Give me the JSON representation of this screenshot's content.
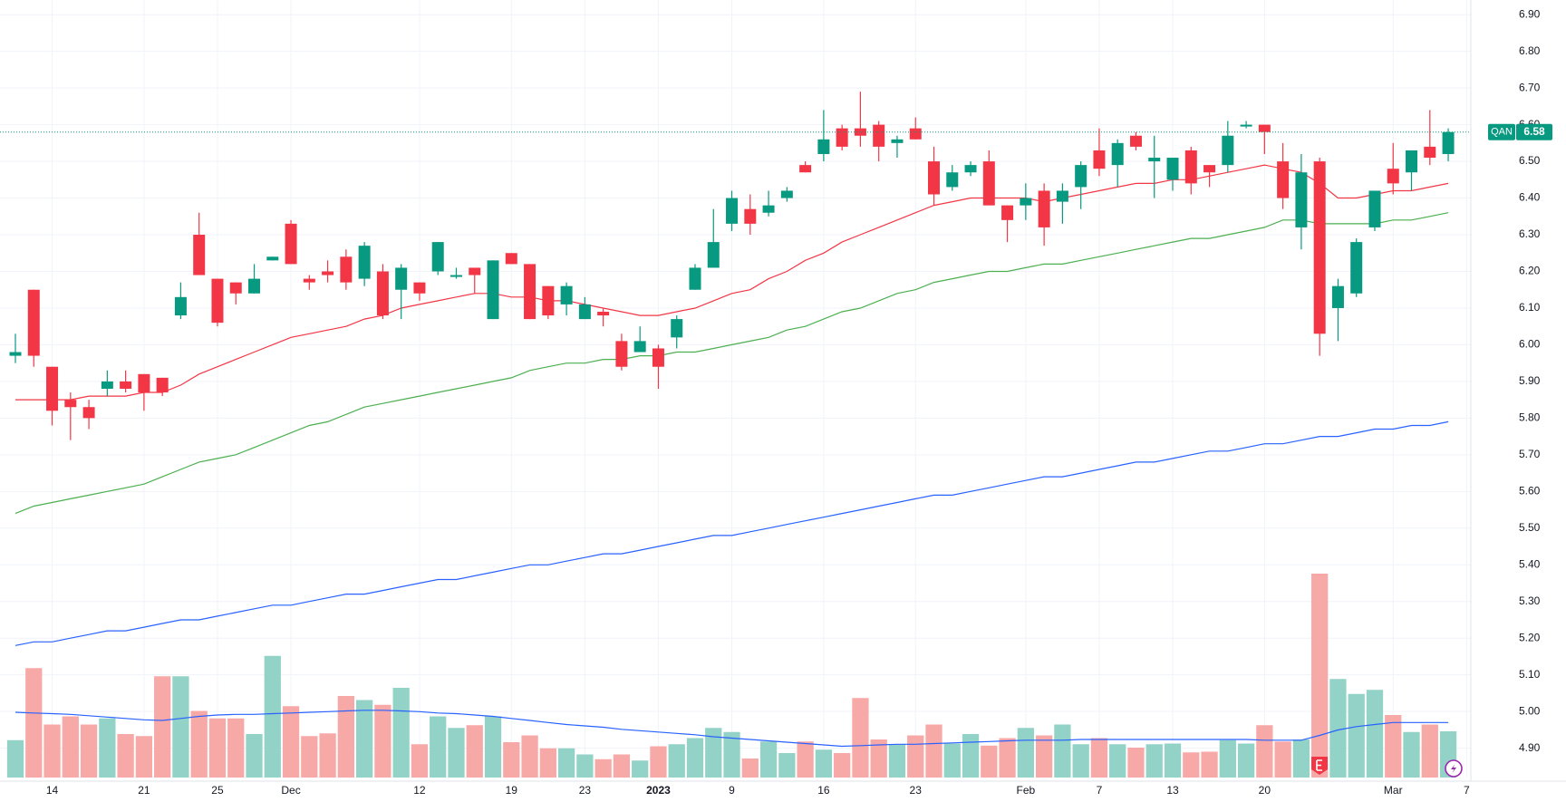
{
  "chart_data": {
    "type": "candlestick",
    "symbol": "QAN",
    "last_price": 6.58,
    "categories": [
      null,
      null,
      "14",
      null,
      null,
      null,
      null,
      "21",
      null,
      null,
      null,
      "25",
      null,
      null,
      null,
      "Dec",
      null,
      null,
      null,
      null,
      null,
      null,
      "12",
      null,
      null,
      null,
      null,
      "19",
      null,
      null,
      null,
      "23",
      null,
      null,
      null,
      "2023",
      null,
      null,
      null,
      "9",
      null,
      null,
      null,
      null,
      "16",
      null,
      null,
      null,
      null,
      "23",
      null,
      null,
      null,
      null,
      null,
      "Feb",
      null,
      null,
      null,
      "7",
      null,
      null,
      null,
      "13",
      null,
      null,
      null,
      null,
      "20",
      null,
      null,
      null,
      null,
      null,
      null,
      "Mar",
      null,
      null,
      null,
      "7"
    ],
    "open": [
      5.97,
      6.15,
      5.94,
      5.85,
      5.83,
      5.88,
      5.9,
      5.92,
      5.91,
      6.08,
      6.3,
      6.18,
      6.17,
      6.14,
      6.23,
      6.33,
      6.18,
      6.2,
      6.24,
      6.18,
      6.2,
      6.15,
      6.17,
      6.2,
      6.185,
      6.21,
      6.07,
      6.25,
      6.22,
      6.16,
      6.11,
      6.07,
      6.09,
      6.01,
      5.98,
      5.99,
      6.02,
      6.15,
      6.21,
      6.33,
      6.37,
      6.36,
      6.4,
      6.49,
      6.52,
      6.59,
      6.59,
      6.6,
      6.55,
      6.59,
      6.5,
      6.43,
      6.47,
      6.5,
      6.38,
      6.38,
      6.42,
      6.39,
      6.43,
      6.53,
      6.49,
      6.57,
      6.5,
      6.45,
      6.53,
      6.49,
      6.49,
      6.595,
      6.6,
      6.5,
      6.32,
      6.5,
      6.1,
      6.14,
      6.32,
      6.48,
      6.47,
      6.54,
      6.52,
      null
    ],
    "high": [
      6.03,
      6.15,
      5.94,
      5.87,
      5.85,
      5.93,
      5.93,
      5.92,
      5.91,
      6.17,
      6.36,
      6.18,
      6.17,
      6.22,
      6.24,
      6.34,
      6.19,
      6.23,
      6.26,
      6.28,
      6.22,
      6.22,
      6.17,
      6.28,
      6.21,
      6.21,
      6.23,
      6.25,
      6.22,
      6.16,
      6.17,
      6.13,
      6.1,
      6.03,
      6.05,
      6.0,
      6.08,
      6.22,
      6.37,
      6.42,
      6.41,
      6.42,
      6.43,
      6.5,
      6.64,
      6.6,
      6.69,
      6.61,
      6.57,
      6.62,
      6.54,
      6.49,
      6.5,
      6.53,
      6.38,
      6.44,
      6.44,
      6.44,
      6.5,
      6.59,
      6.56,
      6.58,
      6.57,
      6.51,
      6.54,
      6.49,
      6.61,
      6.61,
      6.6,
      6.55,
      6.52,
      6.51,
      6.18,
      6.29,
      6.42,
      6.55,
      6.53,
      6.64,
      6.59,
      null
    ],
    "low": [
      5.95,
      5.94,
      5.78,
      5.74,
      5.77,
      5.86,
      5.87,
      5.82,
      5.86,
      6.07,
      6.19,
      6.05,
      6.11,
      6.14,
      6.23,
      6.22,
      6.15,
      6.17,
      6.15,
      6.16,
      6.07,
      6.07,
      6.12,
      6.19,
      6.18,
      6.14,
      6.07,
      6.22,
      6.07,
      6.07,
      6.08,
      6.07,
      6.05,
      5.93,
      5.98,
      5.88,
      5.99,
      6.15,
      6.21,
      6.31,
      6.3,
      6.35,
      6.39,
      6.47,
      6.5,
      6.53,
      6.54,
      6.5,
      6.51,
      6.56,
      6.38,
      6.42,
      6.46,
      6.38,
      6.28,
      6.34,
      6.27,
      6.33,
      6.37,
      6.46,
      6.43,
      6.53,
      6.4,
      6.42,
      6.41,
      6.43,
      6.47,
      6.59,
      6.52,
      6.37,
      6.26,
      5.97,
      6.01,
      6.13,
      6.31,
      6.41,
      6.42,
      6.49,
      6.5,
      null
    ],
    "close": [
      5.98,
      5.97,
      5.82,
      5.83,
      5.8,
      5.9,
      5.88,
      5.87,
      5.87,
      6.13,
      6.19,
      6.06,
      6.14,
      6.18,
      6.24,
      6.22,
      6.17,
      6.19,
      6.17,
      6.27,
      6.08,
      6.21,
      6.14,
      6.28,
      6.19,
      6.19,
      6.23,
      6.22,
      6.07,
      6.08,
      6.16,
      6.11,
      6.08,
      5.94,
      6.01,
      5.94,
      6.07,
      6.21,
      6.28,
      6.4,
      6.33,
      6.38,
      6.42,
      6.47,
      6.56,
      6.54,
      6.57,
      6.54,
      6.56,
      6.56,
      6.41,
      6.47,
      6.49,
      6.38,
      6.34,
      6.4,
      6.32,
      6.42,
      6.49,
      6.48,
      6.55,
      6.54,
      6.51,
      6.51,
      6.44,
      6.47,
      6.57,
      6.6,
      6.58,
      6.4,
      6.47,
      6.03,
      6.16,
      6.28,
      6.42,
      6.44,
      6.53,
      6.51,
      6.58,
      null
    ],
    "volume": [
      5.5,
      16.1,
      7.8,
      9.0,
      7.8,
      8.7,
      6.4,
      6.1,
      14.9,
      14.9,
      9.8,
      8.7,
      8.7,
      6.4,
      17.9,
      10.5,
      6.1,
      6.5,
      12.0,
      11.4,
      10.7,
      13.2,
      4.9,
      9.0,
      7.3,
      7.7,
      9.0,
      5.2,
      6.2,
      4.3,
      4.3,
      3.4,
      2.7,
      3.4,
      2.5,
      4.6,
      4.9,
      5.8,
      7.3,
      6.7,
      2.8,
      5.3,
      3.6,
      5.3,
      4.1,
      3.6,
      11.7,
      5.6,
      4.9,
      6.2,
      7.8,
      5.0,
      6.4,
      4.7,
      5.8,
      7.3,
      6.2,
      7.8,
      4.9,
      5.8,
      4.9,
      4.4,
      4.9,
      5.0,
      3.7,
      3.8,
      5.5,
      5.0,
      7.7,
      5.3,
      5.6,
      30.0,
      14.5,
      12.3,
      12.9,
      9.2,
      6.7,
      7.8,
      6.8,
      null
    ],
    "up_color": "#089981",
    "down_color": "#f23645",
    "up_volume_color": "#92d2c7",
    "down_volume_color": "#f7a9a7",
    "volume_lim": [
      0,
      60
    ],
    "ylim": [
      4.82,
      6.94
    ],
    "yticks": [
      {
        "value": 4.9,
        "label": "4.90"
      },
      {
        "value": 5.0,
        "label": "5.00"
      },
      {
        "value": 5.1,
        "label": "5.10"
      },
      {
        "value": 5.2,
        "label": "5.20"
      },
      {
        "value": 5.3,
        "label": "5.30"
      },
      {
        "value": 5.4,
        "label": "5.40"
      },
      {
        "value": 5.5,
        "label": "5.50"
      },
      {
        "value": 5.6,
        "label": "5.60"
      },
      {
        "value": 5.7,
        "label": "5.70"
      },
      {
        "value": 5.8,
        "label": "5.80"
      },
      {
        "value": 5.9,
        "label": "5.90"
      },
      {
        "value": 6.0,
        "label": "6.00"
      },
      {
        "value": 6.1,
        "label": "6.10"
      },
      {
        "value": 6.2,
        "label": "6.20"
      },
      {
        "value": 6.3,
        "label": "6.30"
      },
      {
        "value": 6.4,
        "label": "6.40"
      },
      {
        "value": 6.5,
        "label": "6.50"
      },
      {
        "value": 6.6,
        "label": "6.60"
      },
      {
        "value": 6.7,
        "label": "6.70"
      },
      {
        "value": 6.8,
        "label": "6.80"
      },
      {
        "value": 6.9,
        "label": "6.90"
      }
    ],
    "grid": true,
    "overlays": [
      {
        "color": "#f23645",
        "values": [
          5.85,
          5.85,
          5.85,
          5.85,
          5.86,
          5.86,
          5.86,
          5.87,
          5.87,
          5.89,
          5.92,
          5.94,
          5.96,
          5.98,
          6.0,
          6.02,
          6.03,
          6.04,
          6.05,
          6.07,
          6.08,
          6.1,
          6.11,
          6.12,
          6.13,
          6.14,
          6.14,
          6.13,
          6.13,
          6.12,
          6.12,
          6.11,
          6.1,
          6.09,
          6.08,
          6.08,
          6.09,
          6.1,
          6.12,
          6.14,
          6.15,
          6.18,
          6.2,
          6.23,
          6.25,
          6.28,
          6.3,
          6.32,
          6.34,
          6.36,
          6.38,
          6.39,
          6.4,
          6.4,
          6.4,
          6.4,
          6.39,
          6.4,
          6.41,
          6.42,
          6.43,
          6.44,
          6.44,
          6.45,
          6.45,
          6.46,
          6.47,
          6.48,
          6.49,
          6.48,
          6.47,
          6.44,
          6.4,
          6.4,
          6.41,
          6.42,
          6.42,
          6.43,
          6.44,
          null
        ]
      },
      {
        "color": "#4caf50",
        "values": [
          5.54,
          5.56,
          5.57,
          5.58,
          5.59,
          5.6,
          5.61,
          5.62,
          5.64,
          5.66,
          5.68,
          5.69,
          5.7,
          5.72,
          5.74,
          5.76,
          5.78,
          5.79,
          5.81,
          5.83,
          5.84,
          5.85,
          5.86,
          5.87,
          5.88,
          5.89,
          5.9,
          5.91,
          5.93,
          5.94,
          5.95,
          5.95,
          5.96,
          5.96,
          5.97,
          5.97,
          5.98,
          5.98,
          5.99,
          6.0,
          6.01,
          6.02,
          6.04,
          6.05,
          6.07,
          6.09,
          6.1,
          6.12,
          6.14,
          6.15,
          6.17,
          6.18,
          6.19,
          6.2,
          6.2,
          6.21,
          6.22,
          6.22,
          6.23,
          6.24,
          6.25,
          6.26,
          6.27,
          6.28,
          6.29,
          6.29,
          6.3,
          6.31,
          6.32,
          6.34,
          6.34,
          6.33,
          6.33,
          6.33,
          6.33,
          6.34,
          6.34,
          6.35,
          6.36,
          null
        ]
      },
      {
        "color": "#2962ff",
        "values": [
          5.18,
          5.19,
          5.19,
          5.2,
          5.21,
          5.22,
          5.22,
          5.23,
          5.24,
          5.25,
          5.25,
          5.26,
          5.27,
          5.28,
          5.29,
          5.29,
          5.3,
          5.31,
          5.32,
          5.32,
          5.33,
          5.34,
          5.35,
          5.36,
          5.36,
          5.37,
          5.38,
          5.39,
          5.4,
          5.4,
          5.41,
          5.42,
          5.43,
          5.43,
          5.44,
          5.45,
          5.46,
          5.47,
          5.48,
          5.48,
          5.49,
          5.5,
          5.51,
          5.52,
          5.53,
          5.54,
          5.55,
          5.56,
          5.57,
          5.58,
          5.59,
          5.59,
          5.6,
          5.61,
          5.62,
          5.63,
          5.64,
          5.64,
          5.65,
          5.66,
          5.67,
          5.68,
          5.68,
          5.69,
          5.7,
          5.71,
          5.71,
          5.72,
          5.73,
          5.73,
          5.74,
          5.75,
          5.75,
          5.76,
          5.77,
          5.77,
          5.78,
          5.78,
          5.79,
          null
        ]
      }
    ],
    "volume_overlay": {
      "color": "#2962ff",
      "values": [
        9.6,
        9.5,
        9.4,
        9.3,
        9.1,
        8.9,
        8.7,
        8.5,
        8.4,
        8.7,
        9.0,
        9.2,
        9.3,
        9.3,
        9.4,
        9.5,
        9.6,
        9.7,
        9.8,
        9.9,
        9.9,
        9.8,
        9.7,
        9.5,
        9.4,
        9.2,
        9.0,
        8.7,
        8.4,
        8.1,
        7.8,
        7.6,
        7.4,
        7.1,
        6.9,
        6.7,
        6.5,
        6.3,
        6.0,
        5.8,
        5.6,
        5.4,
        5.2,
        5.0,
        4.8,
        4.6,
        4.7,
        4.8,
        4.9,
        4.9,
        5.0,
        5.1,
        5.2,
        5.3,
        5.4,
        5.5,
        5.5,
        5.5,
        5.6,
        5.6,
        5.6,
        5.6,
        5.6,
        5.6,
        5.6,
        5.6,
        5.6,
        5.6,
        5.5,
        5.5,
        5.5,
        6.2,
        7.0,
        7.5,
        7.8,
        8.1,
        8.1,
        8.1,
        8.1,
        null
      ]
    }
  }
}
